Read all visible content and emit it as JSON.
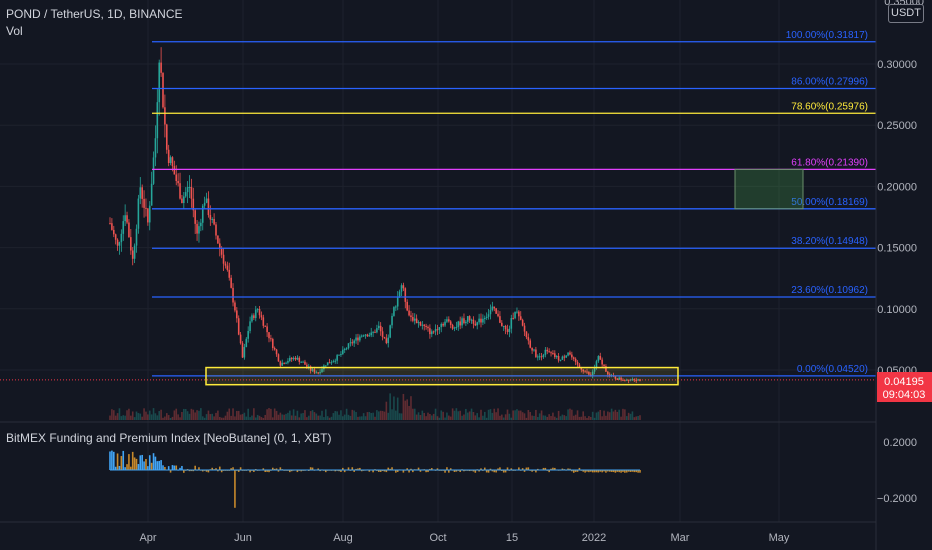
{
  "header": {
    "symbol_line": "POND / TetherUS, 1D, BINANCE",
    "volume_label": "Vol"
  },
  "indicator": {
    "title": "BitMEX Funding and Premium Index [NeoButane] (0, 1, XBT)",
    "axis_ticks": [
      "0.2000",
      "−0.2000"
    ]
  },
  "price_axis": {
    "currency": "USDT",
    "top_partial_tick": "0.35000",
    "ticks": [
      "0.30000",
      "0.25000",
      "0.20000",
      "0.15000",
      "0.10000",
      "0.05000"
    ],
    "last_price": "0.04195",
    "countdown": "09:04:03"
  },
  "colors": {
    "background": "#131722",
    "fib_blue": "#2962ff",
    "fib_yellow": "#ffeb3b",
    "fib_magenta": "#e040fb",
    "up_candle": "#26a69a",
    "down_candle": "#ef5350",
    "last_price_badge": "#f23645",
    "funding_blue": "#42a5f5",
    "funding_orange": "#c7892b"
  },
  "chart_data": {
    "type": "candlestick",
    "time_axis_labels": [
      "Apr",
      "Jun",
      "Aug",
      "Oct",
      "15",
      "2022",
      "Mar",
      "May"
    ],
    "y_range": [
      0.02,
      0.35
    ],
    "fib_levels": [
      {
        "label": "100.00%(0.31817)",
        "value": 0.31817,
        "color": "#2962ff"
      },
      {
        "label": "86.00%(0.27996)",
        "value": 0.27996,
        "color": "#2962ff"
      },
      {
        "label": "78.60%(0.25976)",
        "value": 0.25976,
        "color": "#ffeb3b"
      },
      {
        "label": "61.80%(0.21390)",
        "value": 0.2139,
        "color": "#e040fb"
      },
      {
        "label": "50.00%(0.18169)",
        "value": 0.18169,
        "color": "#2962ff"
      },
      {
        "label": "38.20%(0.14948)",
        "value": 0.14948,
        "color": "#2962ff"
      },
      {
        "label": "23.60%(0.10962)",
        "value": 0.10962,
        "color": "#2962ff"
      },
      {
        "label": "0.00%(0.04520)",
        "value": 0.0452,
        "color": "#2962ff"
      }
    ],
    "support_zone": {
      "low": 0.038,
      "high": 0.052
    },
    "target_zone": {
      "low": 0.1817,
      "high": 0.2139
    },
    "price_path": [
      [
        0,
        0.17
      ],
      [
        4,
        0.15
      ],
      [
        8,
        0.18
      ],
      [
        12,
        0.14
      ],
      [
        16,
        0.2
      ],
      [
        20,
        0.17
      ],
      [
        24,
        0.24
      ],
      [
        26,
        0.31
      ],
      [
        30,
        0.23
      ],
      [
        34,
        0.21
      ],
      [
        38,
        0.19
      ],
      [
        42,
        0.2
      ],
      [
        46,
        0.16
      ],
      [
        50,
        0.19
      ],
      [
        54,
        0.17
      ],
      [
        58,
        0.15
      ],
      [
        62,
        0.13
      ],
      [
        66,
        0.1
      ],
      [
        70,
        0.06
      ],
      [
        74,
        0.09
      ],
      [
        78,
        0.1
      ],
      [
        82,
        0.085
      ],
      [
        86,
        0.07
      ],
      [
        90,
        0.055
      ],
      [
        94,
        0.058
      ],
      [
        98,
        0.06
      ],
      [
        102,
        0.056
      ],
      [
        106,
        0.05
      ],
      [
        110,
        0.048
      ],
      [
        114,
        0.055
      ],
      [
        118,
        0.058
      ],
      [
        122,
        0.063
      ],
      [
        126,
        0.07
      ],
      [
        130,
        0.075
      ],
      [
        134,
        0.08
      ],
      [
        138,
        0.079
      ],
      [
        142,
        0.085
      ],
      [
        146,
        0.07
      ],
      [
        150,
        0.1
      ],
      [
        154,
        0.12
      ],
      [
        158,
        0.095
      ],
      [
        162,
        0.09
      ],
      [
        166,
        0.085
      ],
      [
        170,
        0.08
      ],
      [
        174,
        0.087
      ],
      [
        178,
        0.09
      ],
      [
        182,
        0.085
      ],
      [
        186,
        0.09
      ],
      [
        190,
        0.092
      ],
      [
        194,
        0.088
      ],
      [
        198,
        0.094
      ],
      [
        202,
        0.1
      ],
      [
        206,
        0.09
      ],
      [
        210,
        0.08
      ],
      [
        214,
        0.1
      ],
      [
        218,
        0.085
      ],
      [
        222,
        0.07
      ],
      [
        226,
        0.06
      ],
      [
        230,
        0.065
      ],
      [
        234,
        0.062
      ],
      [
        238,
        0.058
      ],
      [
        242,
        0.065
      ],
      [
        246,
        0.055
      ],
      [
        250,
        0.05
      ],
      [
        254,
        0.045
      ],
      [
        258,
        0.06
      ],
      [
        262,
        0.05
      ],
      [
        264,
        0.045
      ],
      [
        268,
        0.043
      ],
      [
        272,
        0.042
      ],
      [
        276,
        0.043
      ],
      [
        280,
        0.04195
      ]
    ],
    "last_price": 0.04195,
    "funding_axis_ticks": [
      0.2,
      -0.2
    ]
  }
}
